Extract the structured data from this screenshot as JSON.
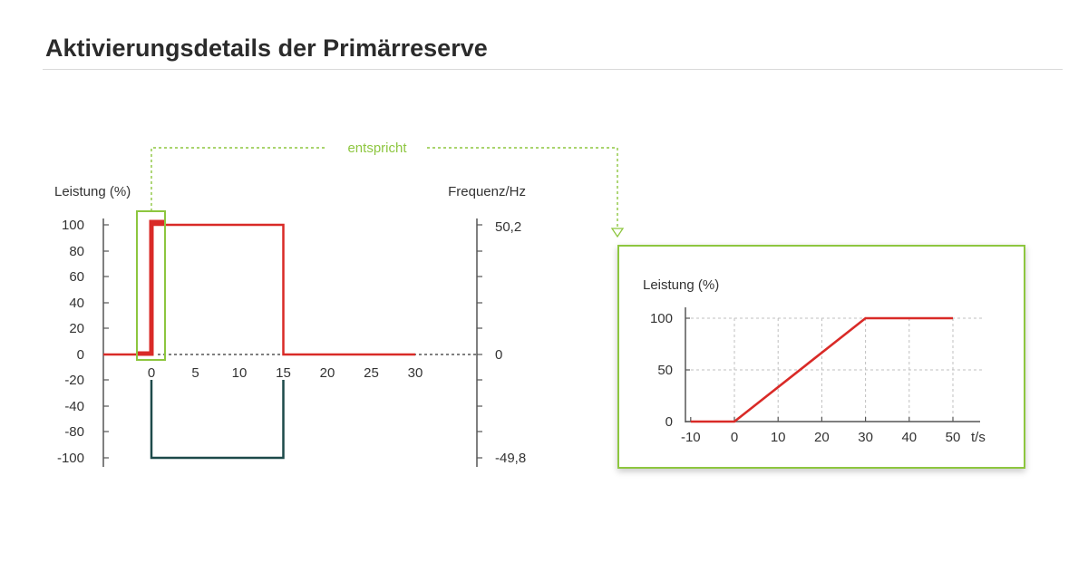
{
  "page": {
    "title": "Aktivierungsdetails der Primärreserve"
  },
  "annotation": {
    "label": "entspricht"
  },
  "colors": {
    "power": "#d92a27",
    "frequency": "#1d4a4a",
    "highlight": "#8dc63f",
    "grid": "#bfbfbf",
    "axis": "#555555"
  },
  "chart_data": [
    {
      "type": "line",
      "ylabel": "Leistung (%)",
      "y2label": "Frequenz/Hz",
      "x_ticks": [
        "0",
        "5",
        "10",
        "15",
        "20",
        "25",
        "30"
      ],
      "y_ticks": [
        "100",
        "80",
        "60",
        "40",
        "20",
        "0",
        "-20",
        "-40",
        "-80",
        "-100"
      ],
      "y2_ticks": [
        "50,2",
        "0",
        "-49,8"
      ],
      "xlim": [
        -5,
        30
      ],
      "ylim": [
        -100,
        100
      ],
      "series": [
        {
          "role": "power",
          "x": [
            -5,
            0,
            0,
            15,
            15,
            30
          ],
          "y": [
            0,
            0,
            100,
            100,
            0,
            0
          ]
        },
        {
          "role": "frequency",
          "x": [
            0,
            0,
            15,
            15
          ],
          "y": [
            -20,
            -100,
            -100,
            -20
          ]
        }
      ],
      "grid": false
    },
    {
      "type": "line",
      "ylabel": "Leistung (%)",
      "xlabel": "t/s",
      "x_ticks": [
        "-10",
        "0",
        "10",
        "20",
        "30",
        "40",
        "50"
      ],
      "y_ticks": [
        "100",
        "50",
        "0"
      ],
      "xlim": [
        -10,
        50
      ],
      "ylim": [
        0,
        100
      ],
      "series": [
        {
          "role": "power",
          "x": [
            -10,
            0,
            30,
            50
          ],
          "y": [
            0,
            0,
            100,
            100
          ]
        }
      ],
      "grid": true
    }
  ]
}
